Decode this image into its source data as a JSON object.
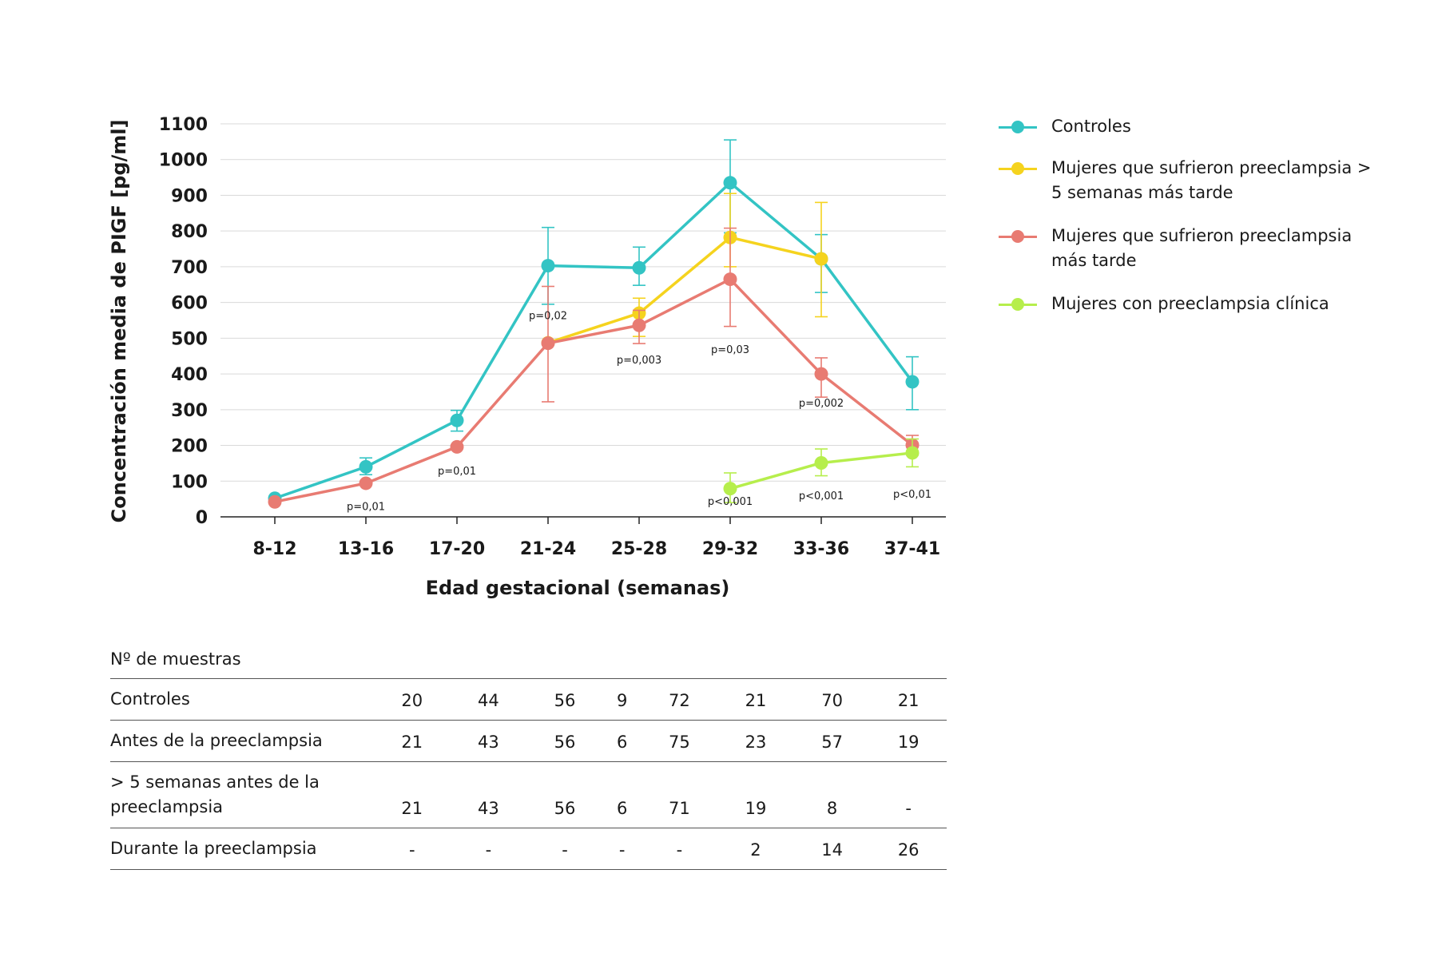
{
  "chart_data": {
    "type": "line",
    "ylabel": "Concentración media de PIGF [pg/ml]",
    "xlabel": "Edad gestacional (semanas)",
    "categories": [
      "8-12",
      "13-16",
      "17-20",
      "21-24",
      "25-28",
      "29-32",
      "33-36",
      "37-41"
    ],
    "ylim": [
      0,
      1100
    ],
    "yticks": [
      0,
      100,
      200,
      300,
      400,
      500,
      600,
      700,
      800,
      900,
      1000,
      1100
    ],
    "grid": "horizontal",
    "legend_position": "right",
    "series": [
      {
        "name": "Controles",
        "color": "#33c4c4",
        "values": [
          52,
          140,
          270,
          703,
          697,
          935,
          722,
          378
        ],
        "error_low": [
          null,
          118,
          240,
          595,
          648,
          795,
          628,
          300
        ],
        "error_high": [
          null,
          165,
          298,
          810,
          755,
          1055,
          790,
          448
        ]
      },
      {
        "name": "Mujeres que sufrieron preeclampsia > 5 semanas más tarde",
        "color": "#f5d31e",
        "values": [
          null,
          null,
          null,
          487,
          570,
          782,
          722,
          null
        ],
        "error_low": [
          null,
          null,
          null,
          null,
          505,
          700,
          560,
          null
        ],
        "error_high": [
          null,
          null,
          null,
          null,
          612,
          905,
          880,
          null
        ]
      },
      {
        "name": "Mujeres que sufrieron preeclampsia más tarde",
        "color": "#e87b72",
        "values": [
          42,
          94,
          196,
          486,
          536,
          665,
          400,
          201
        ],
        "error_low": [
          null,
          null,
          null,
          322,
          485,
          533,
          335,
          173
        ],
        "error_high": [
          null,
          null,
          null,
          645,
          578,
          808,
          445,
          228
        ]
      },
      {
        "name": "Mujeres con preeclampsia clínica",
        "color": "#b6ee4c",
        "values": [
          null,
          null,
          null,
          null,
          null,
          79,
          151,
          179
        ],
        "error_low": [
          null,
          null,
          null,
          null,
          null,
          40,
          115,
          140
        ],
        "error_high": [
          null,
          null,
          null,
          null,
          null,
          123,
          190,
          218
        ]
      }
    ],
    "annotations": [
      {
        "text": "p=0,01",
        "category": "13-16",
        "y": 30
      },
      {
        "text": "p=0,01",
        "category": "17-20",
        "y": 130
      },
      {
        "text": "p=0,02",
        "category": "21-24",
        "y": 565
      },
      {
        "text": "p=0,003",
        "category": "25-28",
        "y": 440
      },
      {
        "text": "p=0,03",
        "category": "29-32",
        "y": 470
      },
      {
        "text": "p=0,002",
        "category": "33-36",
        "y": 320
      },
      {
        "text": "p<0,001",
        "category": "29-32",
        "y": 45
      },
      {
        "text": "p<0,001",
        "category": "33-36",
        "y": 60
      },
      {
        "text": "p<0,01",
        "category": "37-41",
        "y": 65
      }
    ]
  },
  "table": {
    "title": "Nº de muestras",
    "rows": [
      {
        "label": "Controles",
        "values": [
          "20",
          "44",
          "56",
          "9",
          "72",
          "21",
          "70",
          "21"
        ]
      },
      {
        "label": "Antes de la preeclampsia",
        "values": [
          "21",
          "43",
          "56",
          "6",
          "75",
          "23",
          "57",
          "19"
        ]
      },
      {
        "label": "> 5 semanas antes de la preeclampsia",
        "values": [
          "21",
          "43",
          "56",
          "6",
          "71",
          "19",
          "8",
          "-"
        ]
      },
      {
        "label": "Durante la preeclampsia",
        "values": [
          "-",
          "-",
          "-",
          "-",
          "-",
          "2",
          "14",
          "26"
        ]
      }
    ]
  }
}
